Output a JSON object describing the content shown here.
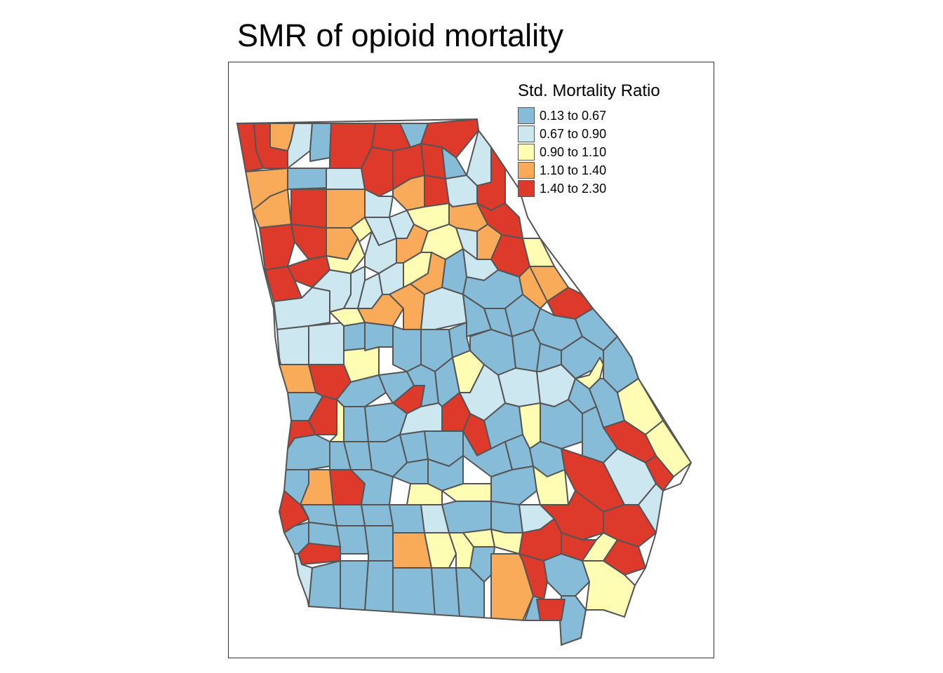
{
  "title": "SMR of opioid mortality",
  "legend": {
    "title": "Std. Mortality Ratio",
    "placement": "top-right",
    "classes": [
      {
        "label": "0.13 to 0.67",
        "color": "#87bcd9"
      },
      {
        "label": "0.67 to 0.90",
        "color": "#cde7f0"
      },
      {
        "label": "0.90 to 1.10",
        "color": "#fefdb3"
      },
      {
        "label": "1.10 to 1.40",
        "color": "#f9ab5a"
      },
      {
        "label": "1.40 to 2.30",
        "color": "#dd3a2b"
      }
    ]
  },
  "colors": {
    "border": "#555555",
    "frame": "#333333",
    "background": "#ffffff"
  }
}
